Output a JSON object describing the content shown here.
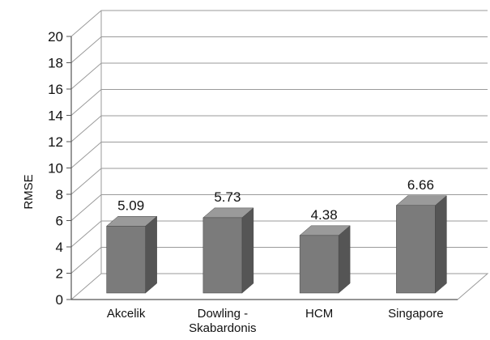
{
  "chart_data": {
    "type": "bar",
    "title": "",
    "xlabel": "",
    "ylabel": "RMSE",
    "categories": [
      "Akcelik",
      "Dowling - Skabardonis",
      "HCM",
      "Singapore"
    ],
    "category_lines": [
      [
        "Akcelik"
      ],
      [
        "Dowling -",
        "Skabardonis"
      ],
      [
        "HCM"
      ],
      [
        "Singapore"
      ]
    ],
    "values": [
      5.09,
      5.73,
      4.38,
      6.66
    ],
    "data_labels": [
      "5.09",
      "5.73",
      "4.38",
      "6.66"
    ],
    "ylim": [
      0,
      20
    ],
    "yticks": [
      "0",
      "2",
      "4",
      "6",
      "8",
      "10",
      "12",
      "14",
      "16",
      "18",
      "20"
    ],
    "grid": true,
    "legend": "none",
    "style": "3d",
    "colors": {
      "bar_front": "#7b7b7b",
      "bar_side": "#555555",
      "bar_top": "#9a9a9a",
      "grid": "#9a9a9a",
      "axis": "#555555"
    }
  }
}
